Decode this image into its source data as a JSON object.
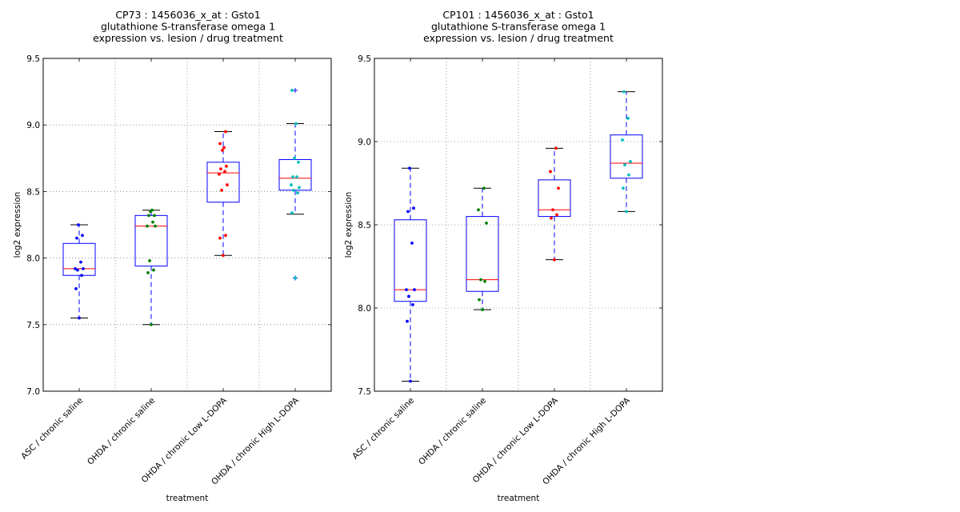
{
  "chart_data": [
    {
      "type": "box",
      "title": [
        "CP73 : 1456036_x_at : Gsto1",
        "glutathione S-transferase omega 1",
        "expression vs. lesion / drug treatment"
      ],
      "xlabel": "treatment",
      "ylabel": "log2 expression",
      "ylim": [
        7.0,
        9.5
      ],
      "yticks": [
        "7.0",
        "7.5",
        "8.0",
        "8.5",
        "9.0",
        "9.5"
      ],
      "grid": true,
      "categories": [
        "ASC / chronic saline",
        "OHDA / chronic saline",
        "OHDA / chronic Low L-DOPA",
        "OHDA / chronic High L-DOPA"
      ],
      "colors": [
        "#0000ff",
        "#008000",
        "#ff0000",
        "#00bfbf"
      ],
      "boxes": [
        {
          "q1": 7.87,
          "median": 7.92,
          "q3": 8.11,
          "whisker_low": 7.55,
          "whisker_high": 8.25,
          "outliers": []
        },
        {
          "q1": 7.94,
          "median": 8.24,
          "q3": 8.32,
          "whisker_low": 7.5,
          "whisker_high": 8.36,
          "outliers": []
        },
        {
          "q1": 8.42,
          "median": 8.64,
          "q3": 8.72,
          "whisker_low": 8.02,
          "whisker_high": 8.95,
          "outliers": []
        },
        {
          "q1": 8.51,
          "median": 8.6,
          "q3": 8.74,
          "whisker_low": 8.33,
          "whisker_high": 9.01,
          "outliers": [
            9.26,
            7.85
          ]
        }
      ],
      "points": [
        [
          7.55,
          7.77,
          7.87,
          7.91,
          7.92,
          7.92,
          7.97,
          8.15,
          8.17,
          8.25
        ],
        [
          7.5,
          7.89,
          7.91,
          7.98,
          8.24,
          8.24,
          8.27,
          8.32,
          8.32,
          8.35,
          8.36
        ],
        [
          8.02,
          8.15,
          8.17,
          8.51,
          8.55,
          8.63,
          8.65,
          8.67,
          8.69,
          8.81,
          8.83,
          8.86,
          8.95
        ],
        [
          7.85,
          8.34,
          8.49,
          8.51,
          8.53,
          8.55,
          8.61,
          8.61,
          8.72,
          8.75,
          9.01,
          9.26
        ]
      ]
    },
    {
      "type": "box",
      "title": [
        "CP101 : 1456036_x_at : Gsto1",
        "glutathione S-transferase omega 1",
        "expression vs. lesion / drug treatment"
      ],
      "xlabel": "treatment",
      "ylabel": "log2 expression",
      "ylim": [
        7.5,
        9.5
      ],
      "yticks": [
        "7.5",
        "8.0",
        "8.5",
        "9.0",
        "9.5"
      ],
      "grid": true,
      "categories": [
        "ASC / chronic saline",
        "OHDA / chronic saline",
        "OHDA / chronic Low L-DOPA",
        "OHDA / chronic High L-DOPA"
      ],
      "colors": [
        "#0000ff",
        "#008000",
        "#ff0000",
        "#00bfbf"
      ],
      "boxes": [
        {
          "q1": 8.04,
          "median": 8.11,
          "q3": 8.53,
          "whisker_low": 7.56,
          "whisker_high": 8.84,
          "outliers": []
        },
        {
          "q1": 8.1,
          "median": 8.17,
          "q3": 8.55,
          "whisker_low": 7.99,
          "whisker_high": 8.72,
          "outliers": []
        },
        {
          "q1": 8.55,
          "median": 8.59,
          "q3": 8.77,
          "whisker_low": 8.29,
          "whisker_high": 8.96,
          "outliers": []
        },
        {
          "q1": 8.78,
          "median": 8.87,
          "q3": 9.04,
          "whisker_low": 8.58,
          "whisker_high": 9.3,
          "outliers": []
        }
      ],
      "points": [
        [
          7.56,
          7.92,
          8.02,
          8.07,
          8.11,
          8.11,
          8.39,
          8.58,
          8.6,
          8.84
        ],
        [
          7.99,
          8.05,
          8.16,
          8.17,
          8.51,
          8.59,
          8.72
        ],
        [
          8.29,
          8.54,
          8.56,
          8.59,
          8.72,
          8.82,
          8.96
        ],
        [
          8.58,
          8.72,
          8.8,
          8.86,
          8.88,
          9.01,
          9.14,
          9.3
        ]
      ]
    }
  ]
}
